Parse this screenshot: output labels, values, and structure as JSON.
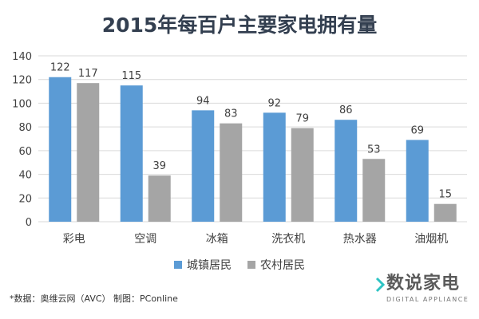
{
  "chart_data": {
    "type": "bar",
    "title": "2015年每百户主要家电拥有量",
    "categories": [
      "彩电",
      "空调",
      "冰箱",
      "洗衣机",
      "热水器",
      "油烟机"
    ],
    "series": [
      {
        "name": "城镇居民",
        "values": [
          122,
          115,
          94,
          92,
          86,
          69
        ],
        "color": "#5b9bd5"
      },
      {
        "name": "农村居民",
        "values": [
          117,
          39,
          83,
          79,
          53,
          15
        ],
        "color": "#a5a5a5"
      }
    ],
    "yticks": [
      "0",
      "20",
      "40",
      "60",
      "80",
      "100",
      "120",
      "140"
    ],
    "ylim": [
      0,
      140
    ],
    "grid": true,
    "legend": "bottom",
    "data_labels": true
  },
  "source": "*数据：奥维云网（AVC）    制图：PConline",
  "logo": {
    "text": "数说家电",
    "subtext": "DIGITAL APPLIANCE"
  }
}
